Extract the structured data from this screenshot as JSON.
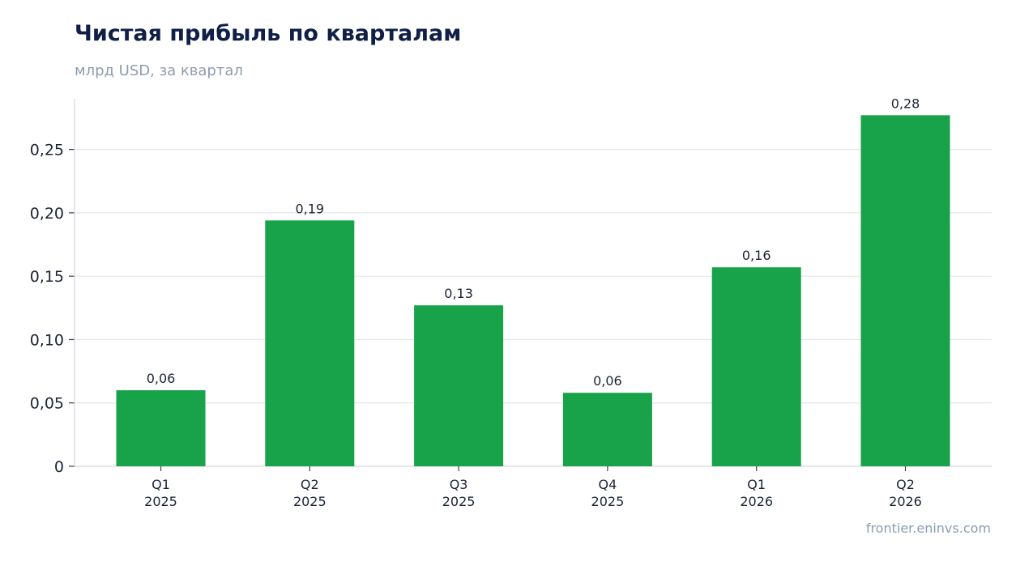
{
  "header": {
    "title": "Чистая прибыль по кварталам",
    "subtitle": "млрд USD, за квартал"
  },
  "footer": {
    "source": "frontier.eninvs.com"
  },
  "chart_data": {
    "type": "bar",
    "title": "Чистая прибыль по кварталам",
    "subtitle": "млрд USD, за квартал",
    "categories": [
      [
        "Q1",
        "2025"
      ],
      [
        "Q2",
        "2025"
      ],
      [
        "Q3",
        "2025"
      ],
      [
        "Q4",
        "2025"
      ],
      [
        "Q1",
        "2026"
      ],
      [
        "Q2",
        "2026"
      ]
    ],
    "values": [
      0.06,
      0.194,
      0.127,
      0.058,
      0.157,
      0.277
    ],
    "data_labels": [
      "0,06",
      "0,19",
      "0,13",
      "0,06",
      "0,16",
      "0,28"
    ],
    "yticks": [
      0,
      0.05,
      0.1,
      0.15,
      0.2,
      0.25
    ],
    "ytick_labels": [
      "0",
      "0,05",
      "0,10",
      "0,15",
      "0,20",
      "0,25"
    ],
    "ylim": [
      0,
      0.29
    ],
    "xlabel": "",
    "ylabel": "",
    "grid": true,
    "legend": "none",
    "colors": {
      "bar": "#18a34a",
      "grid": "#e3e7ec",
      "axis": "#d3d8de"
    }
  }
}
